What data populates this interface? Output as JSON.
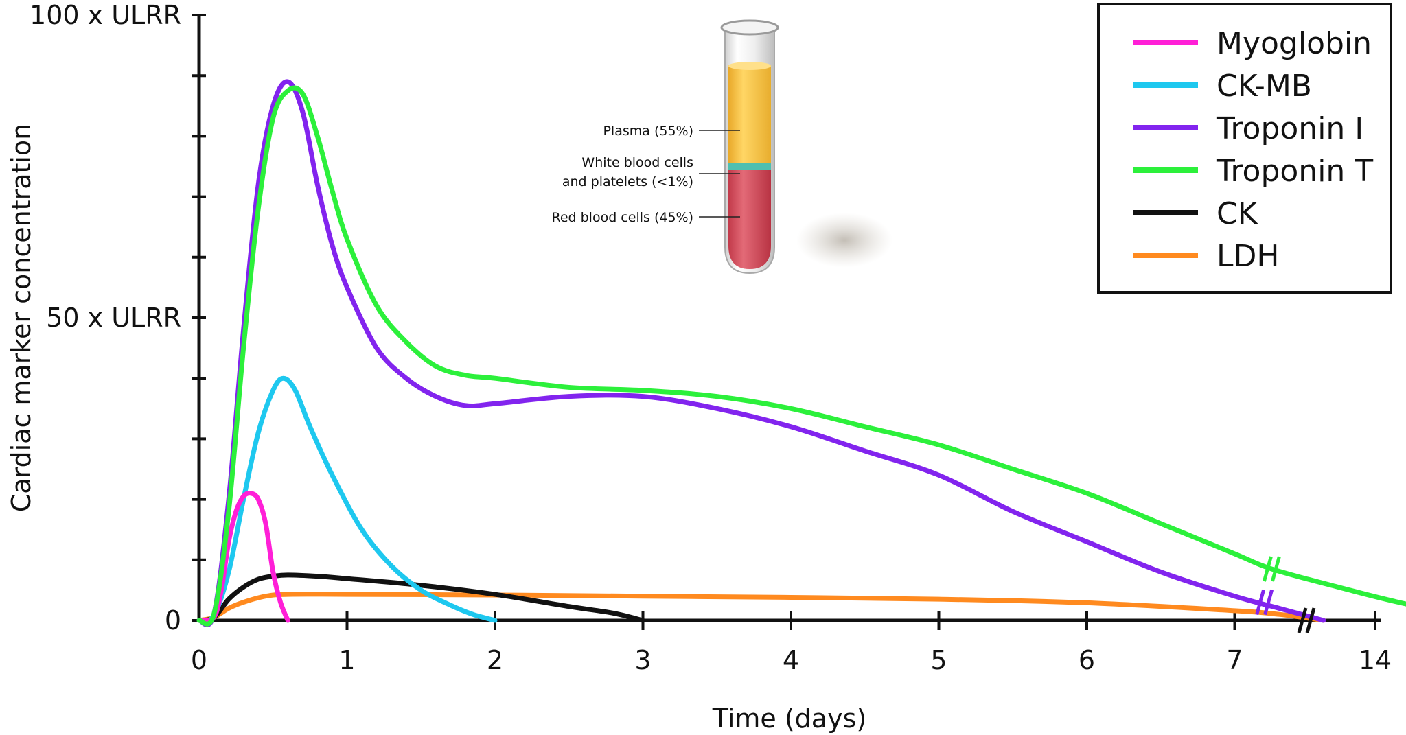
{
  "chart_data": {
    "type": "line",
    "title": "",
    "xlabel": "Time (days)",
    "ylabel": "Cardiac marker concentration",
    "x_tick_labels": [
      "0",
      "1",
      "2",
      "3",
      "4",
      "5",
      "6",
      "7",
      "14"
    ],
    "x_axis_break": "between 7 and 14",
    "y_tick_labels": [
      {
        "value": 0,
        "label": "0"
      },
      {
        "value": 50,
        "label": "50 x ULRR"
      },
      {
        "value": 100,
        "label": "100 x ULRR"
      }
    ],
    "ylim": [
      0,
      100
    ],
    "grid": false,
    "legend_position": "top-right",
    "series": [
      {
        "name": "Myoglobin",
        "color": "#ff1fd7",
        "points": [
          [
            0.0,
            0
          ],
          [
            0.1,
            0.5
          ],
          [
            0.15,
            5
          ],
          [
            0.2,
            13
          ],
          [
            0.25,
            18
          ],
          [
            0.3,
            20.5
          ],
          [
            0.35,
            21
          ],
          [
            0.4,
            20
          ],
          [
            0.45,
            16
          ],
          [
            0.5,
            8
          ],
          [
            0.55,
            3
          ],
          [
            0.6,
            0
          ]
        ]
      },
      {
        "name": "CK-MB",
        "color": "#1ec8ef",
        "points": [
          [
            0.0,
            0
          ],
          [
            0.1,
            0.8
          ],
          [
            0.2,
            8
          ],
          [
            0.3,
            20
          ],
          [
            0.4,
            31
          ],
          [
            0.5,
            38
          ],
          [
            0.57,
            40
          ],
          [
            0.65,
            38
          ],
          [
            0.75,
            32
          ],
          [
            0.9,
            24
          ],
          [
            1.1,
            15
          ],
          [
            1.3,
            9
          ],
          [
            1.5,
            5
          ],
          [
            1.7,
            2.5
          ],
          [
            1.85,
            1
          ],
          [
            2.0,
            0
          ]
        ]
      },
      {
        "name": "Troponin I",
        "color": "#8224ee",
        "points": [
          [
            0.0,
            0
          ],
          [
            0.1,
            1
          ],
          [
            0.2,
            20
          ],
          [
            0.3,
            48
          ],
          [
            0.4,
            72
          ],
          [
            0.5,
            85
          ],
          [
            0.6,
            89
          ],
          [
            0.7,
            84
          ],
          [
            0.8,
            72
          ],
          [
            0.9,
            62
          ],
          [
            1.0,
            55
          ],
          [
            1.2,
            45
          ],
          [
            1.4,
            40
          ],
          [
            1.6,
            37
          ],
          [
            1.8,
            35.5
          ],
          [
            2.0,
            35.8
          ],
          [
            2.5,
            37
          ],
          [
            3.0,
            37
          ],
          [
            3.5,
            35
          ],
          [
            4.0,
            32
          ],
          [
            4.5,
            28
          ],
          [
            5.0,
            24
          ],
          [
            5.5,
            18
          ],
          [
            6.0,
            13
          ],
          [
            6.5,
            8
          ],
          [
            7.0,
            4
          ],
          [
            7.3,
            2
          ],
          [
            7.6,
            0
          ]
        ]
      },
      {
        "name": "Troponin T",
        "color": "#2cf03b",
        "points": [
          [
            0.0,
            0
          ],
          [
            0.1,
            1
          ],
          [
            0.2,
            18
          ],
          [
            0.3,
            45
          ],
          [
            0.4,
            68
          ],
          [
            0.5,
            83
          ],
          [
            0.6,
            87.5
          ],
          [
            0.7,
            87
          ],
          [
            0.8,
            80
          ],
          [
            0.9,
            71
          ],
          [
            1.0,
            63
          ],
          [
            1.2,
            52
          ],
          [
            1.4,
            46
          ],
          [
            1.6,
            42
          ],
          [
            1.8,
            40.5
          ],
          [
            2.0,
            40
          ],
          [
            2.5,
            38.5
          ],
          [
            3.0,
            38
          ],
          [
            3.5,
            37
          ],
          [
            4.0,
            35
          ],
          [
            4.5,
            32
          ],
          [
            5.0,
            29
          ],
          [
            5.5,
            25
          ],
          [
            6.0,
            21
          ],
          [
            6.5,
            16
          ],
          [
            7.0,
            11
          ],
          [
            7.25,
            8.5
          ],
          [
            7.7,
            5.5
          ],
          [
            8.2,
            2.5
          ],
          [
            8.8,
            0
          ]
        ]
      },
      {
        "name": "CK",
        "color": "#111111",
        "points": [
          [
            0.0,
            0
          ],
          [
            0.1,
            0.5
          ],
          [
            0.2,
            3.5
          ],
          [
            0.3,
            5.5
          ],
          [
            0.4,
            6.8
          ],
          [
            0.5,
            7.3
          ],
          [
            0.6,
            7.5
          ],
          [
            0.8,
            7.3
          ],
          [
            1.0,
            6.9
          ],
          [
            1.5,
            5.8
          ],
          [
            2.0,
            4.3
          ],
          [
            2.5,
            2.3
          ],
          [
            2.8,
            1.2
          ],
          [
            3.0,
            0
          ]
        ]
      },
      {
        "name": "LDH",
        "color": "#ff8a1f",
        "points": [
          [
            0.0,
            0
          ],
          [
            0.1,
            0.5
          ],
          [
            0.2,
            2
          ],
          [
            0.3,
            3
          ],
          [
            0.45,
            4
          ],
          [
            0.6,
            4.3
          ],
          [
            1.0,
            4.3
          ],
          [
            2.0,
            4.2
          ],
          [
            3.0,
            4
          ],
          [
            4.0,
            3.8
          ],
          [
            5.0,
            3.5
          ],
          [
            6.0,
            2.9
          ],
          [
            7.0,
            1.6
          ],
          [
            7.3,
            1
          ],
          [
            7.6,
            0
          ]
        ]
      }
    ],
    "annotations": {
      "break_marks_on": [
        "Troponin I",
        "Troponin T",
        "x-axis"
      ]
    },
    "inset_image": {
      "description": "blood sample tube",
      "labels": [
        "Plasma (55%)",
        "White blood cells",
        "and platelets (<1%)",
        "Red blood cells (45%)"
      ],
      "colors": {
        "plasma": "#f6c43c",
        "buffy": "#4fbfb0",
        "rbc": "#d85160"
      }
    }
  }
}
